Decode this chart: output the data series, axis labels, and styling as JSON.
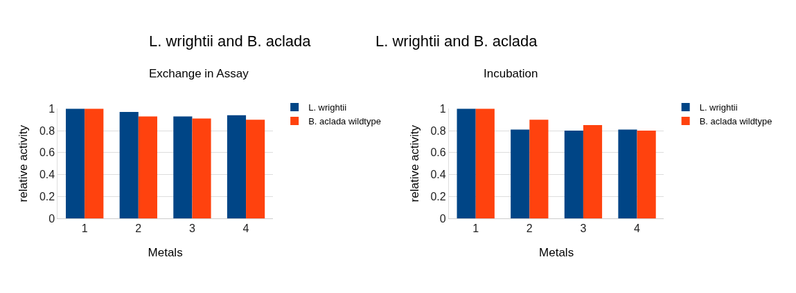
{
  "chart_data": [
    {
      "type": "bar",
      "title": "L. wrightii and B. aclada",
      "subtitle": "Exchange in Assay",
      "xlabel": "Metals",
      "ylabel": "relative activity",
      "categories": [
        "1",
        "2",
        "3",
        "4"
      ],
      "series": [
        {
          "name": "L. wrightii",
          "color": "#004586",
          "values": [
            1.0,
            0.97,
            0.93,
            0.94
          ]
        },
        {
          "name": "B. aclada wildtype",
          "color": "#ff420e",
          "values": [
            1.0,
            0.93,
            0.91,
            0.9
          ]
        }
      ],
      "ylim": [
        0,
        1
      ],
      "yticks": [
        0,
        {
          "value": 0.2,
          "label": "0.2"
        },
        {
          "value": 0.4,
          "label": "0.4"
        },
        {
          "value": 0.6,
          "label": "0.6"
        },
        {
          "value": 0.8,
          "label": "0.8"
        },
        1
      ],
      "grid": "y",
      "legend": "right"
    },
    {
      "type": "bar",
      "title": "L. wrightii and B. aclada",
      "subtitle": "Incubation",
      "xlabel": "Metals",
      "ylabel": "relative activity",
      "categories": [
        "1",
        "2",
        "3",
        "4"
      ],
      "series": [
        {
          "name": "L. wrightii",
          "color": "#004586",
          "values": [
            1.0,
            0.81,
            0.8,
            0.81
          ]
        },
        {
          "name": "B. aclada wildtype",
          "color": "#ff420e",
          "values": [
            1.0,
            0.9,
            0.85,
            0.8
          ]
        }
      ],
      "ylim": [
        0,
        1
      ],
      "yticks": [
        0,
        {
          "value": 0.2,
          "label": "0.2"
        },
        {
          "value": 0.4,
          "label": "0.4"
        },
        {
          "value": 0.6,
          "label": "0.6"
        },
        {
          "value": 0.8,
          "label": "0.8"
        },
        1
      ],
      "grid": "y",
      "legend": "right"
    }
  ]
}
